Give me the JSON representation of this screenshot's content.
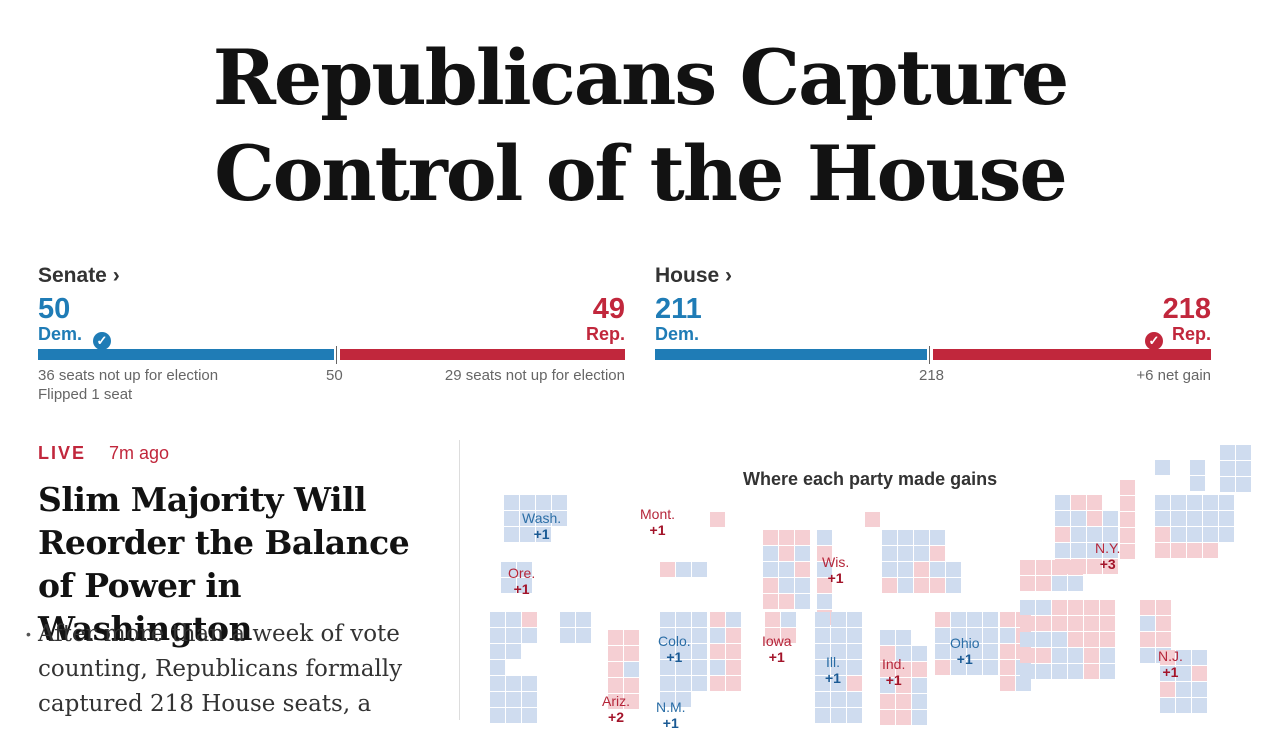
{
  "headline": {
    "line1": "Republicans Capture",
    "line2": "Control of the House"
  },
  "senate": {
    "title": "Senate ›",
    "dem_count": "50",
    "dem_label": "Dem.",
    "rep_count": "49",
    "rep_label": "Rep.",
    "majority": "50",
    "dem_note": "36 seats not up for election",
    "rep_note": "29 seats not up for election",
    "flip_note": "Flipped 1 seat",
    "dem_share": 0.505,
    "winner": "dem"
  },
  "house": {
    "title": "House ›",
    "dem_count": "211",
    "dem_label": "Dem.",
    "rep_count": "218",
    "rep_label": "Rep.",
    "majority": "218",
    "rep_note": "+6 net gain",
    "dem_share": 0.49,
    "winner": "rep"
  },
  "colors": {
    "dem": "#1f7cb6",
    "rep": "#c1273c",
    "dem_light": "#cfdcef",
    "rep_light": "#f5cfd3"
  },
  "check_glyph": "✓",
  "story": {
    "live_label": "LIVE",
    "time_ago": "7m ago",
    "title": "Slim Majority Will Reorder the Balance of Power in Washington",
    "summary": "After more than a week of vote counting, Republicans formally captured 218 House seats, a"
  },
  "map": {
    "title": "Where each party made gains",
    "states": [
      {
        "id": "wash",
        "name": "Wash.",
        "gain": "+1",
        "party": "dem"
      },
      {
        "id": "mont",
        "name": "Mont.",
        "gain": "+1",
        "party": "rep"
      },
      {
        "id": "ore",
        "name": "Ore.",
        "gain": "+1",
        "party": "rep"
      },
      {
        "id": "wis",
        "name": "Wis.",
        "gain": "+1",
        "party": "rep"
      },
      {
        "id": "ny",
        "name": "N.Y.",
        "gain": "+3",
        "party": "rep"
      },
      {
        "id": "colo",
        "name": "Colo.",
        "gain": "+1",
        "party": "dem"
      },
      {
        "id": "iowa",
        "name": "Iowa",
        "gain": "+1",
        "party": "rep"
      },
      {
        "id": "ill",
        "name": "Ill.",
        "gain": "+1",
        "party": "dem"
      },
      {
        "id": "ind",
        "name": "Ind.",
        "gain": "+1",
        "party": "rep"
      },
      {
        "id": "ohio",
        "name": "Ohio",
        "gain": "+1",
        "party": "dem"
      },
      {
        "id": "nj",
        "name": "N.J.",
        "gain": "+1",
        "party": "rep"
      },
      {
        "id": "ariz",
        "name": "Ariz.",
        "gain": "+2",
        "party": "rep"
      },
      {
        "id": "nm",
        "name": "N.M.",
        "gain": "+1",
        "party": "dem"
      }
    ]
  }
}
